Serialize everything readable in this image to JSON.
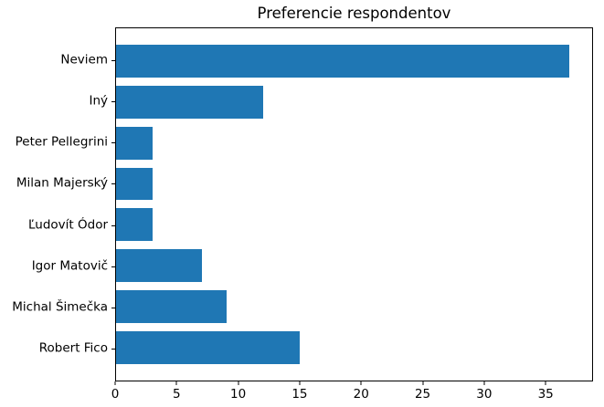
{
  "chart_data": {
    "type": "bar",
    "orientation": "horizontal",
    "title": "Preferencie respondentov",
    "categories": [
      "Neviem",
      "Iný",
      "Peter Pellegrini",
      "Milan Majerský",
      "Ľudovít Ódor",
      "Igor Matovič",
      "Michal Šimečka",
      "Robert Fico"
    ],
    "values": [
      37,
      12,
      3,
      3,
      3,
      7,
      9,
      15
    ],
    "xlabel": "",
    "ylabel": "",
    "xlim": [
      0,
      38.85
    ],
    "xticks": [
      0,
      5,
      10,
      15,
      20,
      25,
      30,
      35
    ],
    "yticks_span_units": 8.58,
    "yticks_offset_units": 0.79,
    "bar_height_units": 0.8,
    "bar_color": "#1f77b4",
    "axis_color": "#000000",
    "text_color": "#000000",
    "background": "#ffffff",
    "grid": false,
    "legend": false
  }
}
